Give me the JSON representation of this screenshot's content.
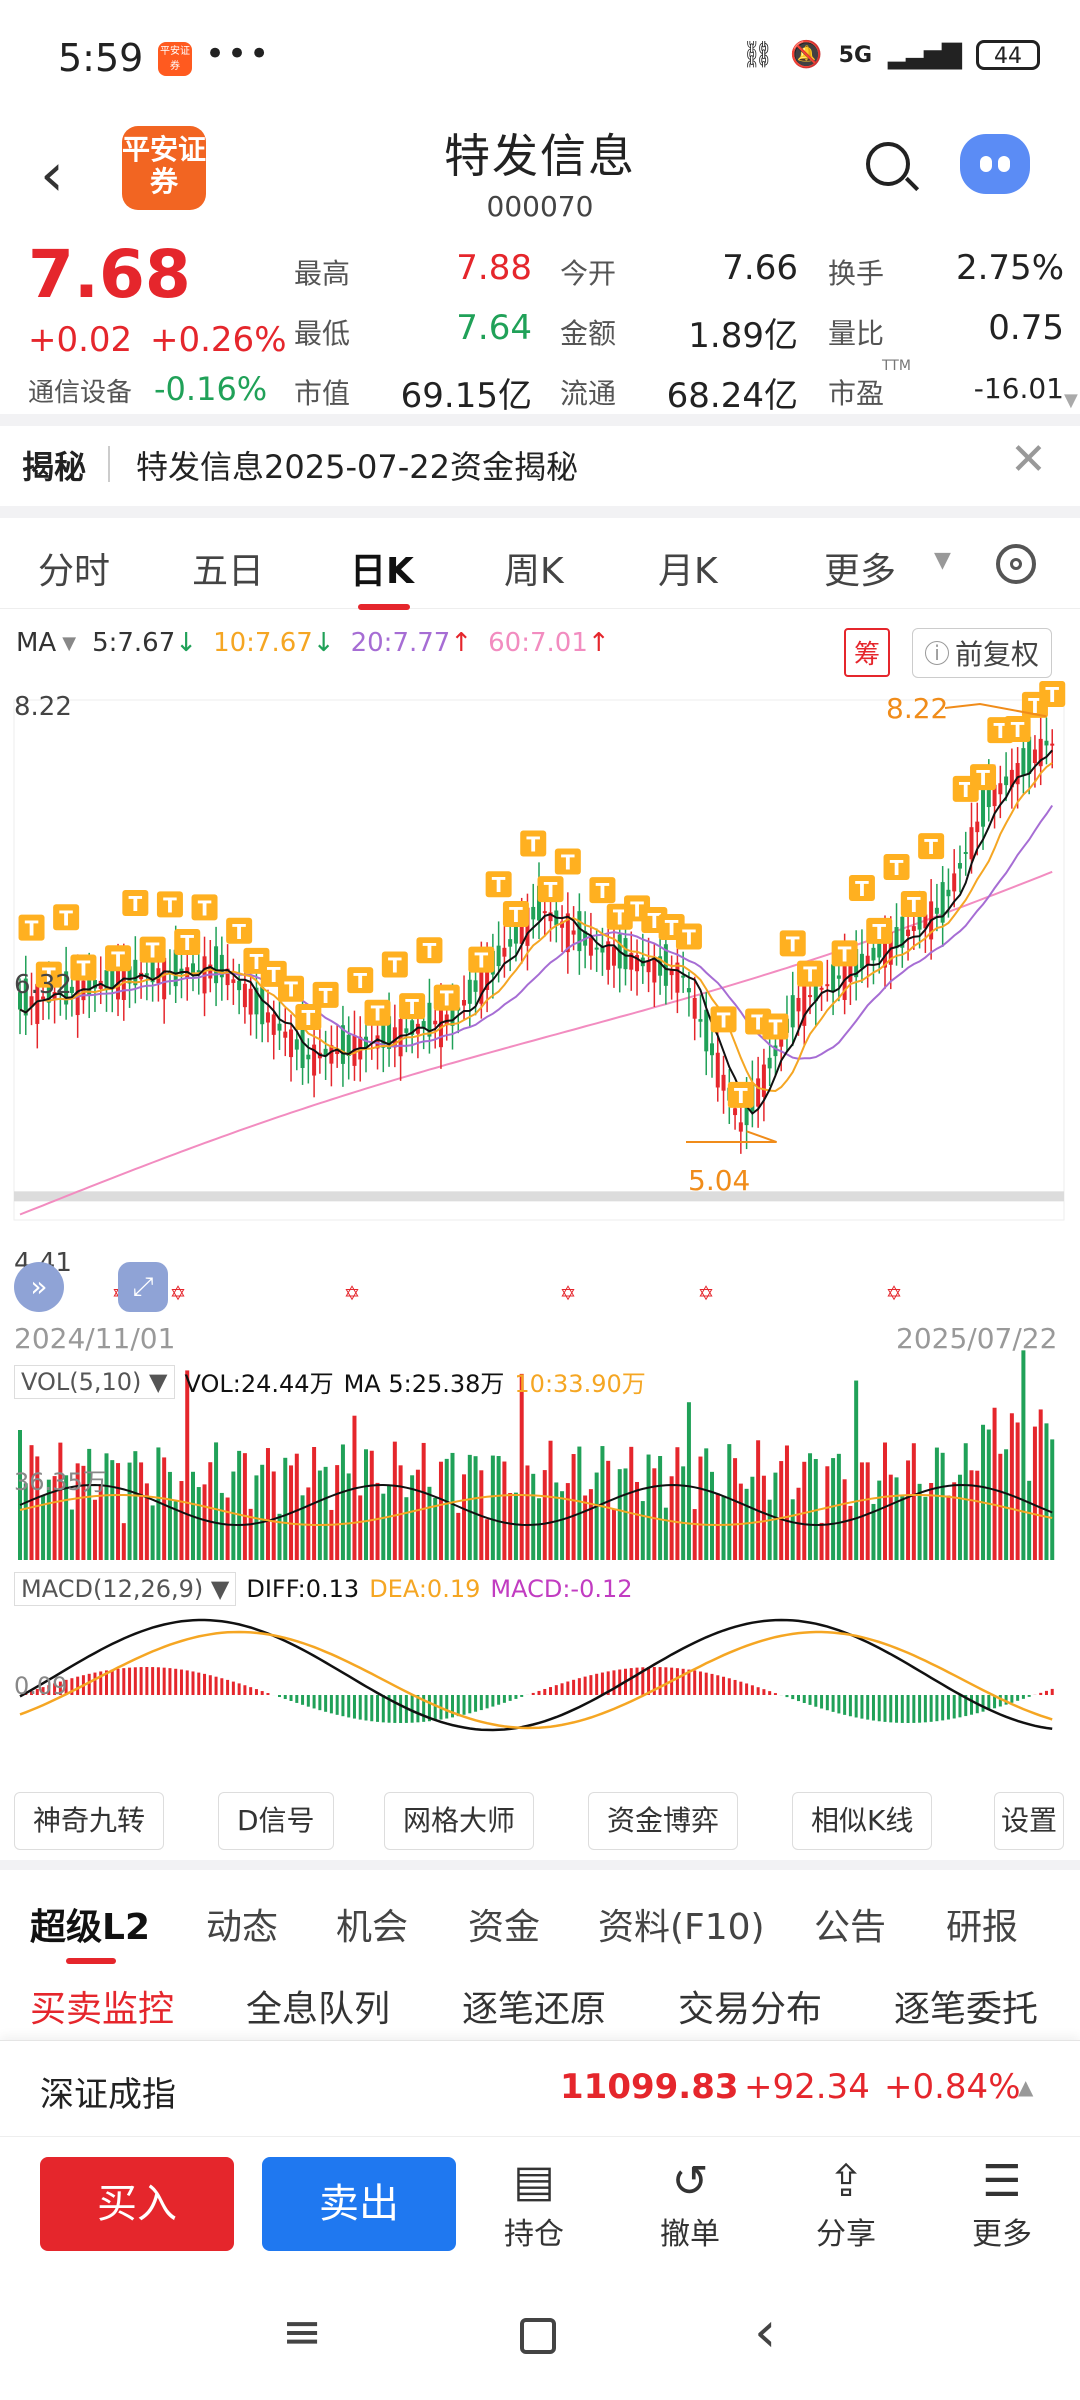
{
  "status_bar": {
    "time": "5:59",
    "app_icon_text": "平安证券",
    "more": "•••",
    "network": "5G",
    "battery": "44"
  },
  "header": {
    "back": "‹",
    "logo_text": "平安证券",
    "stock_name": "特发信息",
    "stock_code": "000070"
  },
  "quote": {
    "price": "7.68",
    "change": "+0.02",
    "change_pct": "+0.26%",
    "industry": "通信设备",
    "industry_chg": "-0.16%",
    "fields": [
      {
        "label": "最高",
        "value": "7.88",
        "color": "red"
      },
      {
        "label": "今开",
        "value": "7.66",
        "color": "dark"
      },
      {
        "label": "换手",
        "value": "2.75%",
        "color": "dark"
      },
      {
        "label": "最低",
        "value": "7.64",
        "color": "green"
      },
      {
        "label": "金额",
        "value": "1.89亿",
        "color": "dark"
      },
      {
        "label": "量比",
        "value": "0.75",
        "color": "dark"
      },
      {
        "label": "市值",
        "value": "69.15亿",
        "color": "dark"
      },
      {
        "label": "流通",
        "value": "68.24亿",
        "color": "dark"
      },
      {
        "label": "市盈",
        "value": "-16.01",
        "color": "dark"
      }
    ],
    "ttm": "TTM"
  },
  "banner": {
    "tag": "揭秘",
    "text": "特发信息2025-07-22资金揭秘",
    "close": "✕"
  },
  "tabs": [
    "分时",
    "五日",
    "日K",
    "周K",
    "月K",
    "更多"
  ],
  "active_tab": "日K",
  "ma_legend": {
    "label": "MA",
    "ma5": "5:7.67",
    "ma10": "10:7.67",
    "ma20": "20:7.77",
    "ma60": "60:7.01",
    "chip": "筹",
    "adjust": "前复权"
  },
  "price_axis": {
    "high": "8.22",
    "mid": "6.32",
    "low": "4.41",
    "max_label": "8.22",
    "min_label": "5.04"
  },
  "dates": {
    "start": "2024/11/01",
    "end": "2025/07/22"
  },
  "vol_legend": {
    "name": "VOL(5,10)",
    "vol": "VOL:24.44万",
    "ma5": "MA 5:25.38万",
    "ma10": "10:33.90万",
    "axis": "36.35万"
  },
  "macd_legend": {
    "name": "MACD(12,26,9)",
    "diff": "DIFF:0.13",
    "dea": "DEA:0.19",
    "macd": "MACD:-0.12",
    "axis": "0.09"
  },
  "tools": [
    "神奇九转",
    "D信号",
    "网格大师",
    "资金博弈",
    "相似K线",
    "设置"
  ],
  "lower_tabs": [
    "超级L2",
    "动态",
    "机会",
    "资金",
    "资料(F10)",
    "公告",
    "研报"
  ],
  "sub_tabs": [
    "买卖监控",
    "全息队列",
    "逐笔还原",
    "交易分布",
    "逐笔委托"
  ],
  "index_bar": {
    "name": "深证成指",
    "value": "11099.83",
    "change": "+92.34",
    "pct": "+0.84%"
  },
  "bottom": {
    "buy": "买入",
    "sell": "卖出",
    "items": [
      "持仓",
      "撤单",
      "分享",
      "更多"
    ]
  },
  "colors": {
    "up": "#e5262c",
    "down": "#20a158",
    "ma5": "#111111",
    "ma10": "#f5a623",
    "ma20": "#a66dd4",
    "ma60": "#f28cc0",
    "t_marker": "#ffb020"
  }
}
